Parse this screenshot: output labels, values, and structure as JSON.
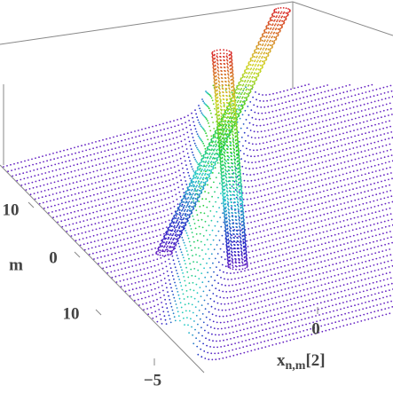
{
  "chart_data": {
    "type": "surface3d",
    "ylabel": "m",
    "yticks": [
      10,
      0,
      10
    ],
    "xlabel": {
      "base": "x",
      "subscript": "n,m",
      "suffix": "[2]"
    },
    "xticks": [
      0,
      -5
    ]
  }
}
